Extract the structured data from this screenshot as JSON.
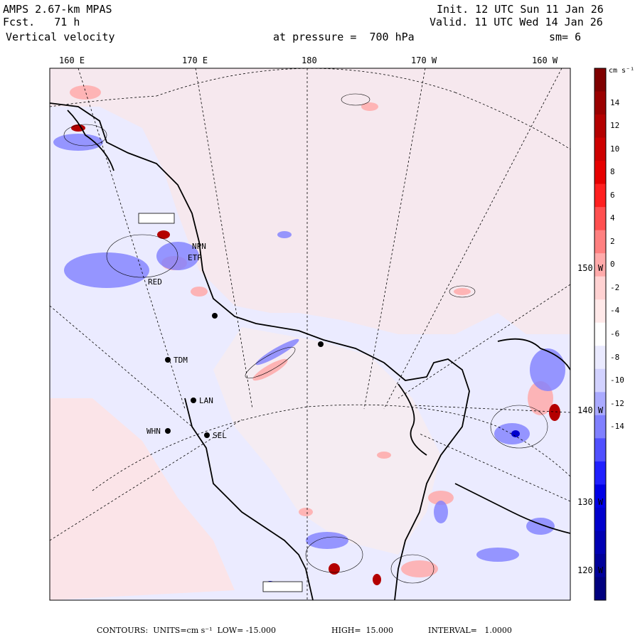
{
  "header": {
    "model": "AMPS 2.67-km MPAS",
    "forecast": "Fcst.   71 h",
    "field": "Vertical velocity",
    "init": "Init. 12 UTC Sun 11 Jan 26",
    "valid": "Valid. 11 UTC Wed 14 Jan 26",
    "level": "at pressure =  700 hPa",
    "smoothing": "sm= 6"
  },
  "top_longitudes": [
    "160 E",
    "170 E",
    "180",
    "170 W",
    "160 W"
  ],
  "right_longitudes": [
    "150 W",
    "140 W",
    "130 W",
    "120 W"
  ],
  "stations": [
    {
      "id": "TDM",
      "label": "TDM"
    },
    {
      "id": "LAN",
      "label": "LAN"
    },
    {
      "id": "WHN",
      "label": "WHN"
    },
    {
      "id": "SEL",
      "label": "SEL"
    },
    {
      "id": "RED",
      "label": "RED"
    },
    {
      "id": "NPN",
      "label": "NPN"
    },
    {
      "id": "ETP",
      "label": "ETP"
    }
  ],
  "colorbar": {
    "units": "cm s⁻¹",
    "ticks": [
      "14",
      "12",
      "10",
      "8",
      "6",
      "4",
      "2",
      "0",
      "-2",
      "-4",
      "-6",
      "-8",
      "-10",
      "-12",
      "-14"
    ],
    "colors": [
      "#7f0000",
      "#9a0000",
      "#b40000",
      "#cd0000",
      "#e60000",
      "#ff2020",
      "#ff5050",
      "#ff8080",
      "#ffaaaa",
      "#ffd2d2",
      "#ffe9e9",
      "#ffffff",
      "#eaeaff",
      "#d2d2ff",
      "#aaaaff",
      "#8080ff",
      "#5050ff",
      "#2020ff",
      "#0000e6",
      "#0000cd",
      "#0000b4",
      "#00009a",
      "#00007f"
    ]
  },
  "footer": {
    "contours": "CONTOURS:  UNITS=cm s⁻¹  LOW= -15.000",
    "high": "HIGH=  15.000",
    "interval": "INTERVAL=   1.0000"
  }
}
